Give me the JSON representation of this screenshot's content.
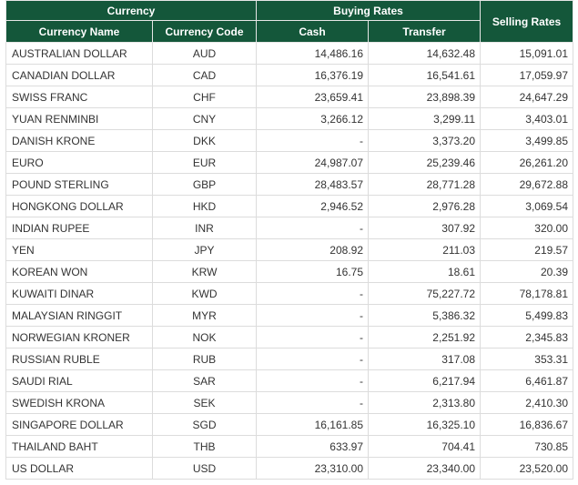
{
  "header": {
    "currency_group": "Currency",
    "buying_group": "Buying Rates",
    "selling": "Selling Rates",
    "currency_name": "Currency Name",
    "currency_code": "Currency Code",
    "cash": "Cash",
    "transfer": "Transfer"
  },
  "rows": [
    {
      "name": "AUSTRALIAN DOLLAR",
      "code": "AUD",
      "cash": "14,486.16",
      "transfer": "14,632.48",
      "selling": "15,091.01"
    },
    {
      "name": "CANADIAN DOLLAR",
      "code": "CAD",
      "cash": "16,376.19",
      "transfer": "16,541.61",
      "selling": "17,059.97"
    },
    {
      "name": "SWISS FRANC",
      "code": "CHF",
      "cash": "23,659.41",
      "transfer": "23,898.39",
      "selling": "24,647.29"
    },
    {
      "name": "YUAN RENMINBI",
      "code": "CNY",
      "cash": "3,266.12",
      "transfer": "3,299.11",
      "selling": "3,403.01"
    },
    {
      "name": "DANISH KRONE",
      "code": "DKK",
      "cash": "-",
      "transfer": "3,373.20",
      "selling": "3,499.85"
    },
    {
      "name": "EURO",
      "code": "EUR",
      "cash": "24,987.07",
      "transfer": "25,239.46",
      "selling": "26,261.20"
    },
    {
      "name": "POUND STERLING",
      "code": "GBP",
      "cash": "28,483.57",
      "transfer": "28,771.28",
      "selling": "29,672.88"
    },
    {
      "name": "HONGKONG DOLLAR",
      "code": "HKD",
      "cash": "2,946.52",
      "transfer": "2,976.28",
      "selling": "3,069.54"
    },
    {
      "name": "INDIAN RUPEE",
      "code": "INR",
      "cash": "-",
      "transfer": "307.92",
      "selling": "320.00"
    },
    {
      "name": "YEN",
      "code": "JPY",
      "cash": "208.92",
      "transfer": "211.03",
      "selling": "219.57"
    },
    {
      "name": "KOREAN WON",
      "code": "KRW",
      "cash": "16.75",
      "transfer": "18.61",
      "selling": "20.39"
    },
    {
      "name": "KUWAITI DINAR",
      "code": "KWD",
      "cash": "-",
      "transfer": "75,227.72",
      "selling": "78,178.81"
    },
    {
      "name": "MALAYSIAN RINGGIT",
      "code": "MYR",
      "cash": "-",
      "transfer": "5,386.32",
      "selling": "5,499.83"
    },
    {
      "name": "NORWEGIAN KRONER",
      "code": "NOK",
      "cash": "-",
      "transfer": "2,251.92",
      "selling": "2,345.83"
    },
    {
      "name": "RUSSIAN RUBLE",
      "code": "RUB",
      "cash": "-",
      "transfer": "317.08",
      "selling": "353.31"
    },
    {
      "name": "SAUDI RIAL",
      "code": "SAR",
      "cash": "-",
      "transfer": "6,217.94",
      "selling": "6,461.87"
    },
    {
      "name": "SWEDISH KRONA",
      "code": "SEK",
      "cash": "-",
      "transfer": "2,313.80",
      "selling": "2,410.30"
    },
    {
      "name": "SINGAPORE DOLLAR",
      "code": "SGD",
      "cash": "16,161.85",
      "transfer": "16,325.10",
      "selling": "16,836.67"
    },
    {
      "name": "THAILAND BAHT",
      "code": "THB",
      "cash": "633.97",
      "transfer": "704.41",
      "selling": "730.85"
    },
    {
      "name": "US DOLLAR",
      "code": "USD",
      "cash": "23,310.00",
      "transfer": "23,340.00",
      "selling": "23,520.00"
    }
  ]
}
